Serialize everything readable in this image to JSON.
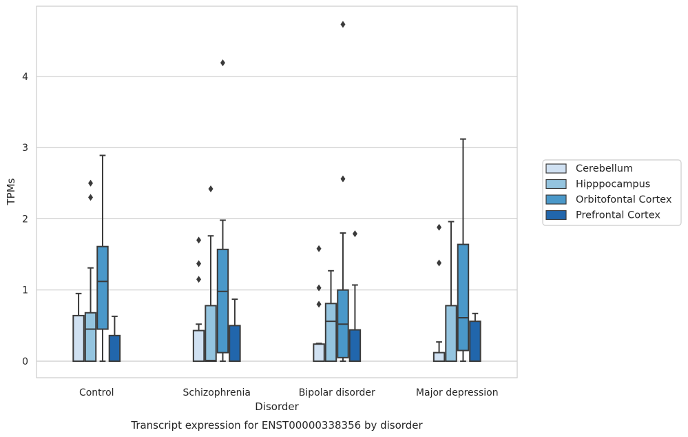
{
  "chart_data": {
    "type": "box",
    "title": "",
    "caption": "Transcript expression for ENST00000338356 by disorder",
    "xlabel": "Disorder",
    "ylabel": "TPMs",
    "ylim": [
      -0.23,
      5.0
    ],
    "yticks": [
      0,
      1,
      2,
      3,
      4
    ],
    "grid": "horizontal",
    "legend_position": "right",
    "categories": [
      "Control",
      "Schizophrenia",
      "Bipolar disorder",
      "Major depression"
    ],
    "series": [
      {
        "name": "Cerebellum",
        "color": "#d0e1f2",
        "boxes": [
          {
            "whislo": 0,
            "q1": 0,
            "med": 0,
            "q3": 0.64,
            "whishi": 0.95,
            "fliers": []
          },
          {
            "whislo": 0,
            "q1": 0,
            "med": 0,
            "q3": 0.43,
            "whishi": 0.52,
            "fliers": [
              1.15,
              1.37,
              1.7
            ]
          },
          {
            "whislo": 0,
            "q1": 0,
            "med": 0,
            "q3": 0.24,
            "whishi": 0.25,
            "fliers": [
              0.8,
              1.03,
              1.58
            ]
          },
          {
            "whislo": 0,
            "q1": 0,
            "med": 0,
            "q3": 0.12,
            "whishi": 0.27,
            "fliers": [
              1.38,
              1.88
            ]
          }
        ]
      },
      {
        "name": "Hipppocampus",
        "color": "#94c4df",
        "boxes": [
          {
            "whislo": 0,
            "q1": 0,
            "med": 0.45,
            "q3": 0.68,
            "whishi": 1.31,
            "fliers": [
              2.3,
              2.5
            ]
          },
          {
            "whislo": 0,
            "q1": 0,
            "med": 0.01,
            "q3": 0.78,
            "whishi": 1.76,
            "fliers": [
              2.42
            ]
          },
          {
            "whislo": 0,
            "q1": 0,
            "med": 0.56,
            "q3": 0.81,
            "whishi": 1.27,
            "fliers": []
          },
          {
            "whislo": 0,
            "q1": 0,
            "med": 0,
            "q3": 0.78,
            "whishi": 1.96,
            "fliers": []
          }
        ]
      },
      {
        "name": "Orbitofontal Cortex",
        "color": "#4a98c9",
        "boxes": [
          {
            "whislo": 0,
            "q1": 0.45,
            "med": 1.12,
            "q3": 1.61,
            "whishi": 2.89,
            "fliers": []
          },
          {
            "whislo": 0,
            "q1": 0.12,
            "med": 0.98,
            "q3": 1.57,
            "whishi": 1.98,
            "fliers": [
              4.19
            ]
          },
          {
            "whislo": 0,
            "q1": 0.05,
            "med": 0.52,
            "q3": 1.0,
            "whishi": 1.8,
            "fliers": [
              2.56,
              4.73
            ]
          },
          {
            "whislo": 0,
            "q1": 0.15,
            "med": 0.61,
            "q3": 1.64,
            "whishi": 3.12,
            "fliers": []
          }
        ]
      },
      {
        "name": "Prefrontal Cortex",
        "color": "#2166ac",
        "boxes": [
          {
            "whislo": 0,
            "q1": 0,
            "med": 0,
            "q3": 0.36,
            "whishi": 0.63,
            "fliers": []
          },
          {
            "whislo": 0,
            "q1": 0,
            "med": 0,
            "q3": 0.5,
            "whishi": 0.87,
            "fliers": []
          },
          {
            "whislo": 0,
            "q1": 0,
            "med": 0,
            "q3": 0.44,
            "whishi": 1.07,
            "fliers": [
              1.79
            ]
          },
          {
            "whislo": 0,
            "q1": 0,
            "med": 0,
            "q3": 0.56,
            "whishi": 0.67,
            "fliers": []
          }
        ]
      }
    ]
  }
}
